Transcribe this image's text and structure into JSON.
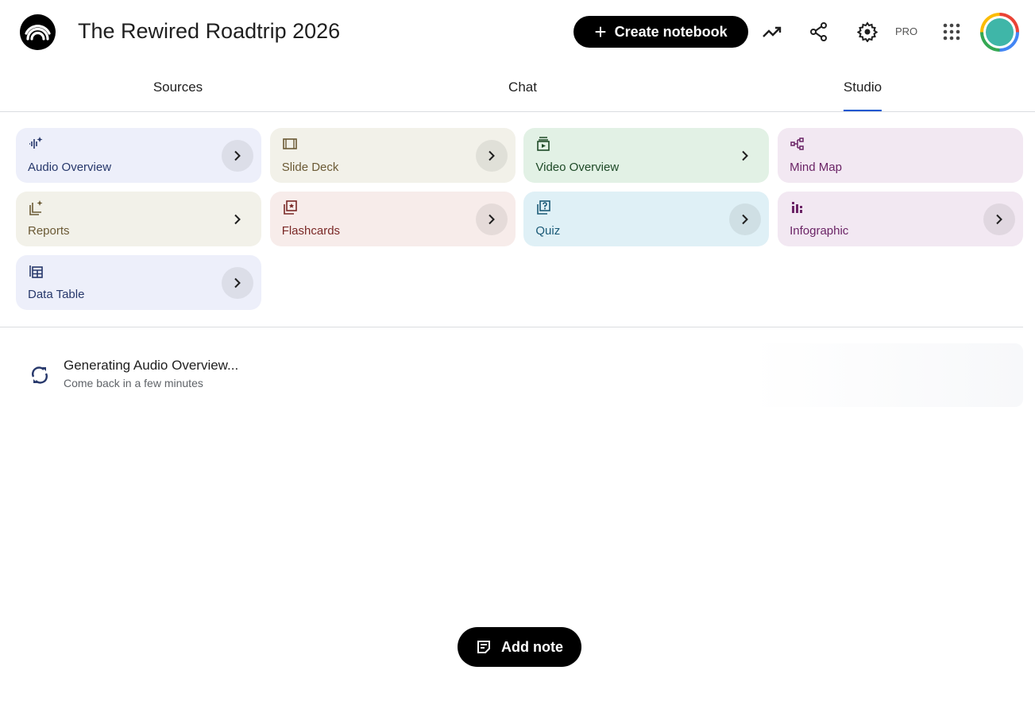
{
  "header": {
    "title": "The Rewired Roadtrip 2026",
    "create_label": "Create notebook",
    "pro_badge": "PRO"
  },
  "tabs": [
    {
      "label": "Sources"
    },
    {
      "label": "Chat"
    },
    {
      "label": "Studio",
      "active": true
    }
  ],
  "studio_cards": [
    {
      "label": "Audio Overview",
      "icon": "audio-waveform-sparkle-icon",
      "bg": "#edeffa",
      "fg": "#27386b",
      "circle": true
    },
    {
      "label": "Slide Deck",
      "icon": "slides-icon",
      "bg": "#f2f1e9",
      "fg": "#6b5a35",
      "circle": true
    },
    {
      "label": "Video Overview",
      "icon": "video-icon",
      "bg": "#e2f1e5",
      "fg": "#1e4a27",
      "circle": false
    },
    {
      "label": "Mind Map",
      "icon": "mind-map-icon",
      "bg": "#f2e8f2",
      "fg": "#6b2466",
      "circle": null
    },
    {
      "label": "Reports",
      "icon": "report-sparkle-icon",
      "bg": "#f2f1e9",
      "fg": "#6b5a35",
      "circle": false
    },
    {
      "label": "Flashcards",
      "icon": "flashcards-icon",
      "bg": "#f7ecea",
      "fg": "#7a2826",
      "circle": true
    },
    {
      "label": "Quiz",
      "icon": "quiz-icon",
      "bg": "#dff0f6",
      "fg": "#1b5a77",
      "circle": true
    },
    {
      "label": "Infographic",
      "icon": "infographic-icon",
      "bg": "#f2e8f2",
      "fg": "#6b2466",
      "circle": true
    },
    {
      "label": "Data Table",
      "icon": "data-table-icon",
      "bg": "#edeffa",
      "fg": "#27386b",
      "circle": true
    }
  ],
  "generating": {
    "title": "Generating Audio Overview...",
    "subtitle": "Come back in a few minutes"
  },
  "add_note_label": "Add note"
}
